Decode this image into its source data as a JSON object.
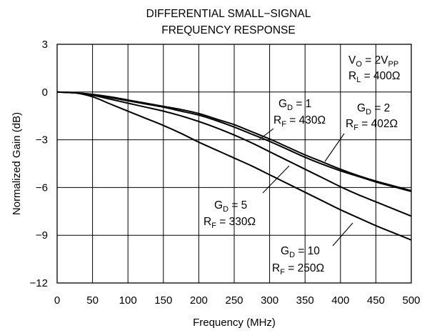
{
  "chart_data": {
    "type": "line",
    "title": [
      "DIFFERENTIAL SMALL−SIGNAL",
      "FREQUENCY RESPONSE"
    ],
    "xlabel": "Frequency (MHz)",
    "ylabel": "Normalized Gain (dB)",
    "xlim": [
      0,
      500
    ],
    "ylim": [
      -12,
      3
    ],
    "xticks": [
      0,
      50,
      100,
      150,
      200,
      250,
      300,
      350,
      400,
      450,
      500
    ],
    "yticks": [
      3,
      0,
      -3,
      -6,
      -9,
      -12
    ],
    "ytick_labels": [
      "3",
      "0",
      "−3",
      "−6",
      "−9",
      "−12"
    ],
    "grid": true,
    "conditions": {
      "vo": {
        "main": "V",
        "sub": "O",
        "rest": " = 2V",
        "sub2": "PP"
      },
      "rl": {
        "main": "R",
        "sub": "L",
        "rest": " = 400Ω"
      }
    },
    "series": [
      {
        "label_gain": {
          "main": "G",
          "sub": "D",
          "rest": " = 1"
        },
        "label_rf": {
          "main": "R",
          "sub": "F",
          "rest": " = 430Ω"
        },
        "x": [
          0,
          25,
          50,
          75,
          100,
          125,
          150,
          175,
          200,
          225,
          250,
          275,
          300,
          325,
          350,
          375,
          400,
          425,
          450,
          475,
          500
        ],
        "y": [
          0,
          -0.05,
          -0.15,
          -0.35,
          -0.55,
          -0.75,
          -0.95,
          -1.2,
          -1.45,
          -1.8,
          -2.2,
          -2.65,
          -3.1,
          -3.6,
          -4.1,
          -4.55,
          -4.95,
          -5.3,
          -5.65,
          -5.95,
          -6.25
        ]
      },
      {
        "label_gain": {
          "main": "G",
          "sub": "D",
          "rest": " = 2"
        },
        "label_rf": {
          "main": "R",
          "sub": "F",
          "rest": " = 402Ω"
        },
        "x": [
          0,
          25,
          50,
          75,
          100,
          125,
          150,
          175,
          200,
          225,
          250,
          275,
          300,
          325,
          350,
          375,
          400,
          425,
          450,
          475,
          500
        ],
        "y": [
          0,
          -0.05,
          -0.15,
          -0.3,
          -0.5,
          -0.7,
          -0.9,
          -1.1,
          -1.35,
          -1.7,
          -2.05,
          -2.5,
          -2.95,
          -3.45,
          -3.95,
          -4.4,
          -4.85,
          -5.25,
          -5.6,
          -5.9,
          -6.2
        ]
      },
      {
        "label_gain": {
          "main": "G",
          "sub": "D",
          "rest": " = 5"
        },
        "label_rf": {
          "main": "R",
          "sub": "F",
          "rest": " = 330Ω"
        },
        "x": [
          0,
          25,
          50,
          75,
          100,
          125,
          150,
          175,
          200,
          225,
          250,
          275,
          300,
          325,
          350,
          375,
          400,
          425,
          450,
          475,
          500
        ],
        "y": [
          0,
          -0.05,
          -0.2,
          -0.45,
          -0.7,
          -0.95,
          -1.2,
          -1.5,
          -1.85,
          -2.25,
          -2.7,
          -3.2,
          -3.75,
          -4.3,
          -4.85,
          -5.4,
          -5.95,
          -6.45,
          -6.9,
          -7.35,
          -7.8
        ]
      },
      {
        "label_gain": {
          "main": "G",
          "sub": "D",
          "rest": " = 10"
        },
        "label_rf": {
          "main": "R",
          "sub": "F",
          "rest": " = 250Ω"
        },
        "x": [
          0,
          25,
          50,
          75,
          100,
          125,
          150,
          175,
          200,
          225,
          250,
          275,
          300,
          325,
          350,
          375,
          400,
          425,
          450,
          475,
          500
        ],
        "y": [
          0,
          -0.05,
          -0.3,
          -0.75,
          -1.2,
          -1.65,
          -2.1,
          -2.6,
          -3.15,
          -3.65,
          -4.15,
          -4.65,
          -5.2,
          -5.75,
          -6.3,
          -6.85,
          -7.4,
          -7.9,
          -8.4,
          -8.85,
          -9.3
        ]
      }
    ]
  }
}
